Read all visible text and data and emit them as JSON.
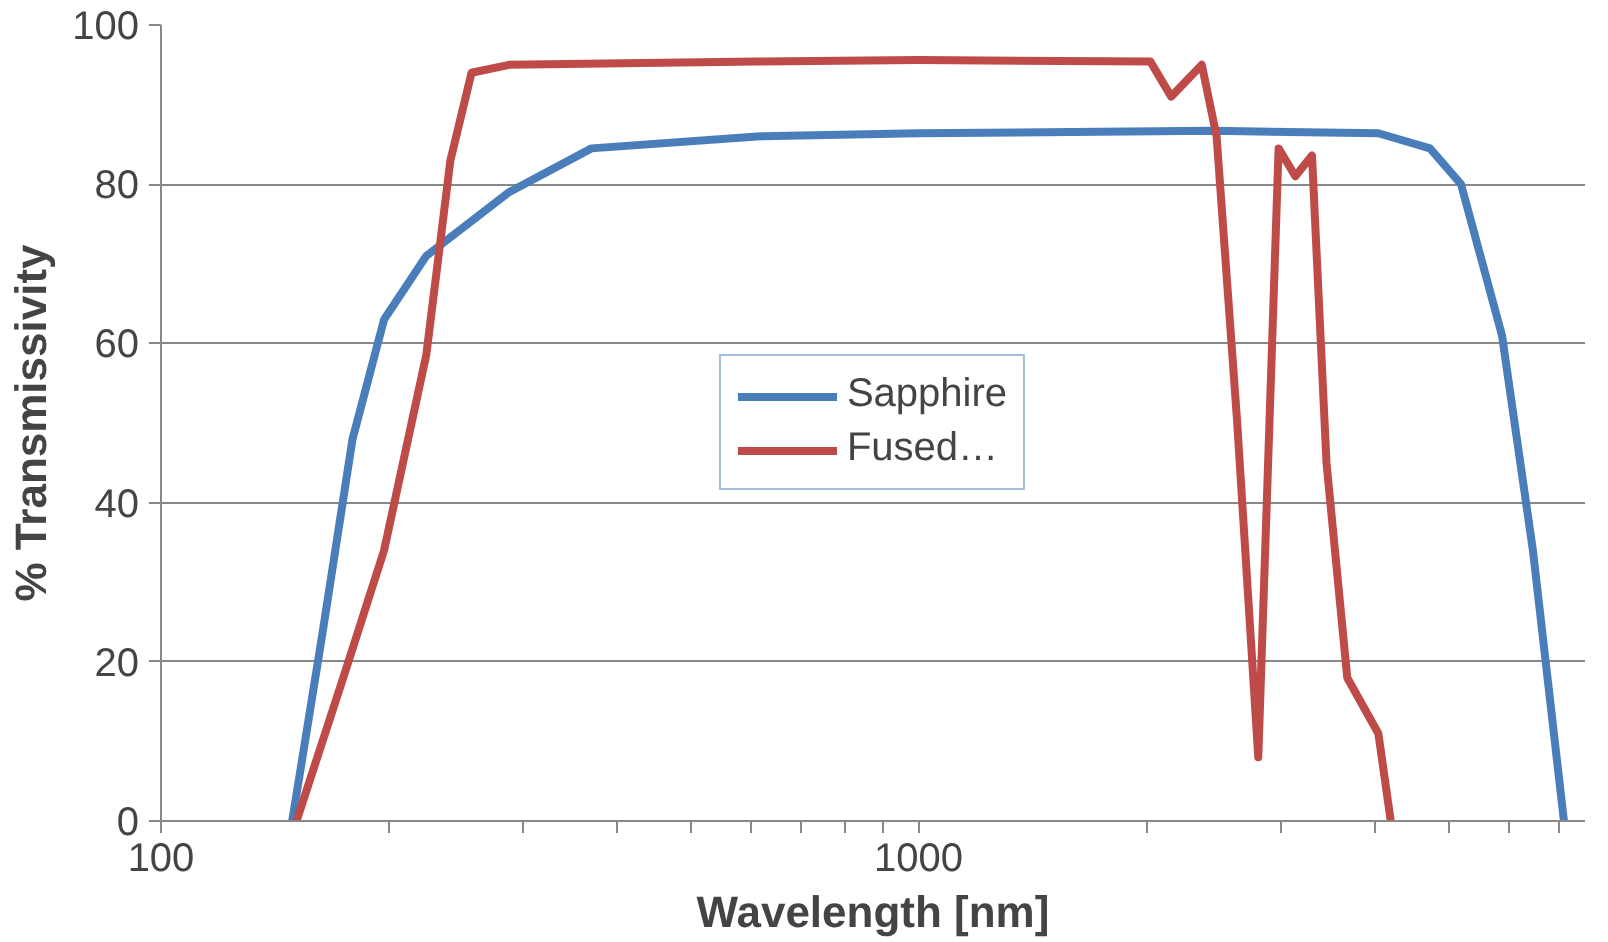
{
  "chart_data": {
    "type": "line",
    "xlabel": "Wavelength [nm]",
    "ylabel": "% Transmissivity",
    "log": "x",
    "xlim": [
      100,
      7580
    ],
    "ylim": [
      0,
      100
    ],
    "xticks": [
      100,
      {
        "value": 200,
        "label": null
      },
      {
        "value": 300,
        "label": null
      },
      {
        "value": 400,
        "label": null
      },
      {
        "value": 500,
        "label": null
      },
      {
        "value": 600,
        "label": null
      },
      {
        "value": 700,
        "label": null
      },
      {
        "value": 800,
        "label": null
      },
      {
        "value": 900,
        "label": null
      },
      1000,
      {
        "value": 2000,
        "label": null
      },
      {
        "value": 3000,
        "label": null
      },
      {
        "value": 4000,
        "label": null
      },
      {
        "value": 5000,
        "label": null
      },
      {
        "value": 6000,
        "label": null
      },
      {
        "value": 7000,
        "label": null
      }
    ],
    "yticks": [
      0,
      20,
      40,
      60,
      80,
      100
    ],
    "grid": "y",
    "legend": "center",
    "line_style": "solid",
    "marker": "none",
    "series": [
      {
        "name": "Sapphire",
        "color": "#4a7ebb",
        "x": [
          149,
          163,
          179,
          197,
          224,
          288,
          370,
          612,
          1000,
          2443,
          4045,
          4732,
          5200,
          5890,
          6470,
          7110
        ],
        "values": [
          0,
          23,
          48,
          63,
          71,
          79,
          84.5,
          86,
          86.4,
          86.7,
          86.4,
          84.5,
          80,
          61,
          34,
          0
        ]
      },
      {
        "name": "Fused…",
        "color": "#be4b48",
        "x": [
          151,
          174,
          197,
          224,
          241,
          257,
          288,
          612,
          1000,
          2023,
          2155,
          2365,
          2474,
          2634,
          2808,
          2987,
          3143,
          3306,
          3455,
          3680,
          4045,
          4200
        ],
        "values": [
          0,
          18,
          34,
          58.6,
          83,
          94,
          95,
          95.4,
          95.6,
          95.4,
          91,
          95,
          86,
          50,
          8,
          84.5,
          81,
          83.6,
          45,
          18,
          11,
          0
        ]
      }
    ]
  }
}
